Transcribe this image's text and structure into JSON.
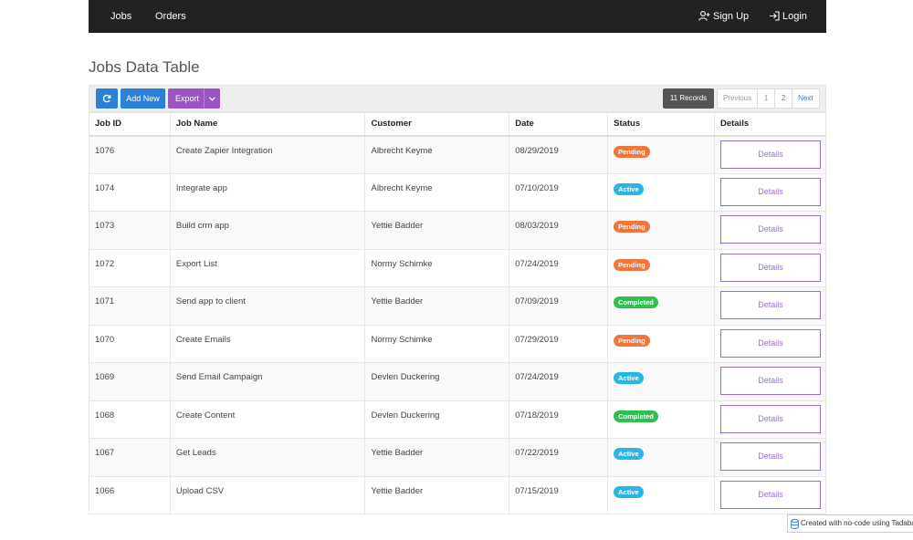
{
  "nav": {
    "jobs": "Jobs",
    "orders": "Orders",
    "signup": "Sign Up",
    "login": "Login"
  },
  "page_title": "Jobs Data Table",
  "toolbar": {
    "add_new": "Add New",
    "export": "Export",
    "records": "11 Records"
  },
  "pager": {
    "previous": "Previous",
    "page1": "1",
    "page2": "2",
    "next": "Next"
  },
  "table": {
    "headers": [
      "Job ID",
      "Job Name",
      "Customer",
      "Date",
      "Status",
      "Details"
    ],
    "details_label": "Details",
    "rows": [
      {
        "id": "1076",
        "name": "Create Zapier Integration",
        "customer": "Albrecht Keyme",
        "date": "08/29/2019",
        "status": "Pending"
      },
      {
        "id": "1074",
        "name": "Integrate app",
        "customer": "Albrecht Keyme",
        "date": "07/10/2019",
        "status": "Active"
      },
      {
        "id": "1073",
        "name": "Build crm app",
        "customer": "Yettie Badder",
        "date": "08/03/2019",
        "status": "Pending"
      },
      {
        "id": "1072",
        "name": "Export List",
        "customer": "Normy Schimke",
        "date": "07/24/2019",
        "status": "Pending"
      },
      {
        "id": "1071",
        "name": "Send app to client",
        "customer": "Yettie Badder",
        "date": "07/09/2019",
        "status": "Completed"
      },
      {
        "id": "1070",
        "name": "Create Emails",
        "customer": "Normy Schimke",
        "date": "07/29/2019",
        "status": "Pending"
      },
      {
        "id": "1069",
        "name": "Send Email Campaign",
        "customer": "Devlen Duckering",
        "date": "07/24/2019",
        "status": "Active"
      },
      {
        "id": "1068",
        "name": "Create Content",
        "customer": "Devlen Duckering",
        "date": "07/18/2019",
        "status": "Completed"
      },
      {
        "id": "1067",
        "name": "Get Leads",
        "customer": "Yettie Badder",
        "date": "07/22/2019",
        "status": "Active"
      },
      {
        "id": "1066",
        "name": "Upload CSV",
        "customer": "Yettie Badder",
        "date": "07/15/2019",
        "status": "Active"
      }
    ]
  },
  "status_colors": {
    "Pending": "#f0763a",
    "Active": "#29b6e6",
    "Completed": "#2fbf4f"
  },
  "footer": {
    "text": "Created with no-code using Tadabas"
  }
}
